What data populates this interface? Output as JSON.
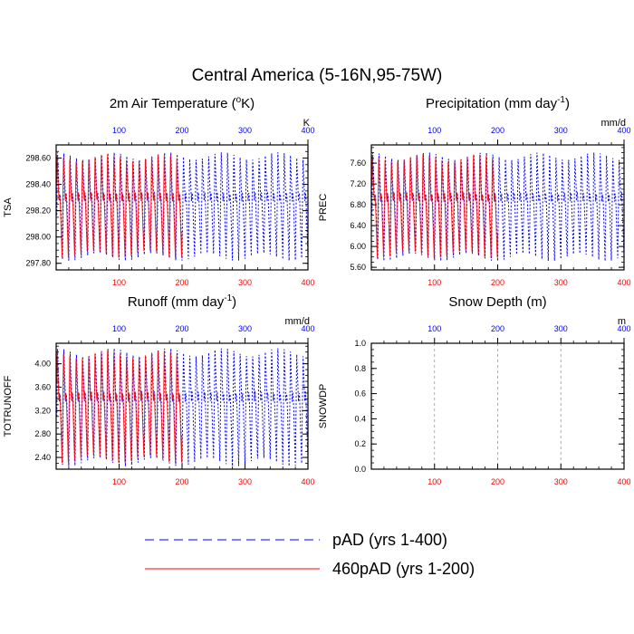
{
  "title": "Central America (5-16N,95-75W)",
  "colors": {
    "pAD": "#0000ff",
    "p460": "#ff0000",
    "top_ticks": "#0000ff",
    "bottom_ticks_red": "#ff0000",
    "frame": "#000000"
  },
  "legend": {
    "placement": "bottom-center",
    "entries": [
      {
        "label": "pAD (yrs 1-400)",
        "style": "dashed",
        "color": "#0000ff"
      },
      {
        "label": "460pAD (yrs 1-200)",
        "style": "solid",
        "color": "#ff0000"
      }
    ]
  },
  "chart_data": [
    {
      "type": "line",
      "id": "tsa",
      "title": "2m Air Temperature (",
      "title_sup": "o",
      "title_tail": "K)",
      "units": "K",
      "ylabel": "TSA",
      "xlim": [
        0,
        400
      ],
      "ylim": [
        297.75,
        298.7
      ],
      "yticks": [
        297.8,
        298.0,
        298.2,
        298.4,
        298.6
      ],
      "ytick_labels": [
        "297.80",
        "298.00",
        "298.20",
        "298.40",
        "298.60"
      ],
      "xticks": [
        100,
        200,
        300,
        400
      ],
      "xtick_labels": [
        "100",
        "200",
        "300",
        "400"
      ],
      "bottom_ticks_red": true,
      "grid": false,
      "series": [
        {
          "name": "pAD (yrs 1-400)",
          "years": [
            1,
            400
          ],
          "cycle_years": 10,
          "min": 297.82,
          "max": 298.65,
          "mid": 298.35
        },
        {
          "name": "460pAD (yrs 1-200)",
          "years": [
            1,
            200
          ],
          "cycle_years": 10,
          "min": 297.82,
          "max": 298.65,
          "mid": 298.35
        }
      ]
    },
    {
      "type": "line",
      "id": "prec",
      "title": "Precipitation (mm day",
      "title_sup": "-1",
      "title_tail": ")",
      "units": "mm/d",
      "ylabel": "PREC",
      "xlim": [
        0,
        400
      ],
      "ylim": [
        5.55,
        7.95
      ],
      "yticks": [
        5.6,
        6.0,
        6.4,
        6.8,
        7.2,
        7.6
      ],
      "ytick_labels": [
        "5.60",
        "6.00",
        "6.40",
        "6.80",
        "7.20",
        "7.60"
      ],
      "xticks": [
        100,
        200,
        300,
        400
      ],
      "xtick_labels": [
        "100",
        "200",
        "300",
        "400"
      ],
      "bottom_ticks_red": true,
      "grid": false,
      "series": [
        {
          "name": "pAD (yrs 1-400)",
          "years": [
            1,
            400
          ],
          "cycle_years": 10,
          "min": 5.72,
          "max": 7.82,
          "mid": 6.5
        },
        {
          "name": "460pAD (yrs 1-200)",
          "years": [
            1,
            200
          ],
          "cycle_years": 10,
          "min": 5.72,
          "max": 7.82,
          "mid": 6.5
        }
      ]
    },
    {
      "type": "line",
      "id": "runoff",
      "title": "Runoff (mm day",
      "title_sup": "-1",
      "title_tail": ")",
      "units": "mm/d",
      "ylabel": "TOTRUNOFF",
      "xlim": [
        0,
        400
      ],
      "ylim": [
        2.2,
        4.35
      ],
      "yticks": [
        2.4,
        2.8,
        3.2,
        3.6,
        4.0
      ],
      "ytick_labels": [
        "2.40",
        "2.80",
        "3.20",
        "3.60",
        "4.00"
      ],
      "xticks": [
        100,
        200,
        300,
        400
      ],
      "xtick_labels": [
        "100",
        "200",
        "300",
        "400"
      ],
      "bottom_ticks_red": true,
      "grid": false,
      "series": [
        {
          "name": "pAD (yrs 1-400)",
          "years": [
            1,
            400
          ],
          "cycle_years": 10,
          "min": 2.25,
          "max": 4.28,
          "mid": 3.05
        },
        {
          "name": "460pAD (yrs 1-200)",
          "years": [
            1,
            200
          ],
          "cycle_years": 10,
          "min": 2.25,
          "max": 4.28,
          "mid": 3.05
        }
      ]
    },
    {
      "type": "line",
      "id": "snowdp",
      "title": "Snow Depth (m)",
      "title_sup": "",
      "title_tail": "",
      "units": "m",
      "ylabel": "SNOWDP",
      "xlim": [
        0,
        400
      ],
      "ylim": [
        0.0,
        1.0
      ],
      "yticks": [
        0.0,
        0.2,
        0.4,
        0.6,
        0.8,
        1.0
      ],
      "ytick_labels": [
        "0.0",
        "0.2",
        "0.4",
        "0.6",
        "0.8",
        "1.0"
      ],
      "xticks": [
        100,
        200,
        300,
        400
      ],
      "xtick_labels": [
        "100",
        "200",
        "300",
        "400"
      ],
      "bottom_ticks_red": true,
      "grid": true,
      "series": []
    }
  ]
}
